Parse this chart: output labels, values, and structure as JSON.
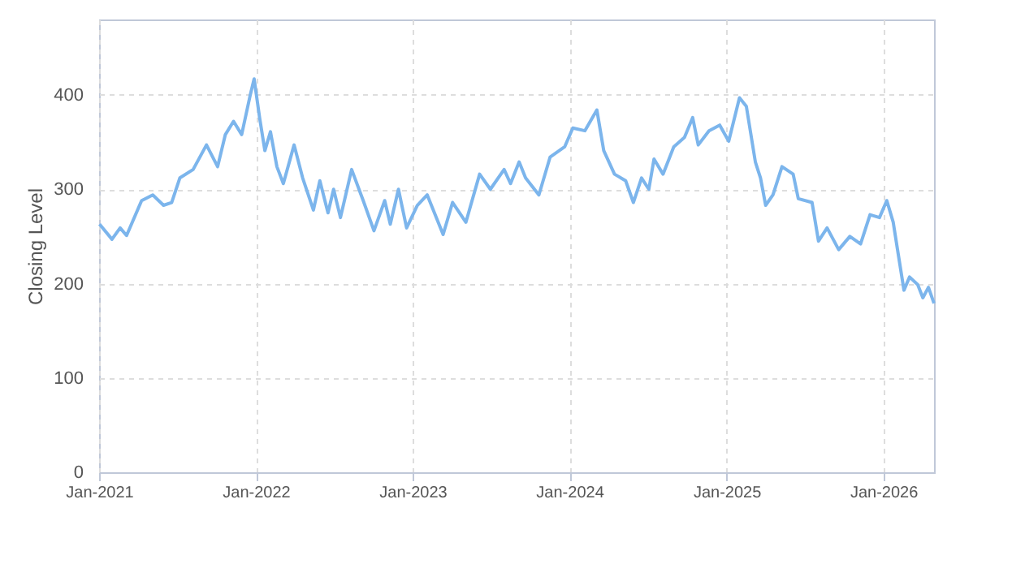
{
  "chart_data": {
    "type": "line",
    "ylabel": "Closing Level",
    "x": [
      "2021-01-02",
      "2021-01-31",
      "2021-02-19",
      "2021-03-06",
      "2021-04-10",
      "2021-05-06",
      "2021-05-31",
      "2021-06-19",
      "2021-07-08",
      "2021-08-08",
      "2021-09-08",
      "2021-10-04",
      "2021-10-22",
      "2021-11-10",
      "2021-11-29",
      "2021-12-18",
      "2021-12-28",
      "2022-01-10",
      "2022-01-22",
      "2022-02-04",
      "2022-02-19",
      "2022-03-06",
      "2022-03-31",
      "2022-04-20",
      "2022-05-15",
      "2022-05-30",
      "2022-06-18",
      "2022-07-01",
      "2022-07-17",
      "2022-08-12",
      "2022-09-08",
      "2022-10-03",
      "2022-10-28",
      "2022-11-10",
      "2022-11-29",
      "2022-12-18",
      "2023-01-12",
      "2023-02-04",
      "2023-03-13",
      "2023-04-04",
      "2023-05-05",
      "2023-06-06",
      "2023-07-01",
      "2023-08-02",
      "2023-08-17",
      "2023-09-06",
      "2023-09-21",
      "2023-10-22",
      "2023-11-17",
      "2023-12-21",
      "2024-01-09",
      "2024-02-06",
      "2024-03-05",
      "2024-03-21",
      "2024-04-15",
      "2024-05-11",
      "2024-05-29",
      "2024-06-17",
      "2024-07-04",
      "2024-07-16",
      "2024-08-06",
      "2024-08-31",
      "2024-09-25",
      "2024-10-14",
      "2024-10-27",
      "2024-11-21",
      "2024-12-16",
      "2025-01-06",
      "2025-01-31",
      "2025-02-16",
      "2025-03-09",
      "2025-03-21",
      "2025-04-02",
      "2025-04-19",
      "2025-05-10",
      "2025-06-05",
      "2025-06-17",
      "2025-07-19",
      "2025-08-03",
      "2025-08-23",
      "2025-09-19",
      "2025-10-15",
      "2025-11-09",
      "2025-12-01",
      "2025-12-23",
      "2026-01-09",
      "2026-01-24",
      "2026-02-03",
      "2026-02-18",
      "2026-03-03",
      "2026-03-22",
      "2026-04-03",
      "2026-04-16",
      "2026-04-29"
    ],
    "series": [
      {
        "color": "#7cb5ec",
        "values": [
          263,
          247,
          259,
          251,
          288,
          294,
          283,
          286,
          312,
          321,
          347,
          324,
          358,
          372,
          358,
          398,
          417,
          375,
          341,
          361,
          324,
          306,
          347,
          312,
          278,
          309,
          275,
          300,
          270,
          321,
          288,
          256,
          288,
          263,
          300,
          259,
          283,
          294,
          252,
          286,
          265,
          316,
          300,
          321,
          306,
          329,
          312,
          294,
          334,
          345,
          365,
          362,
          384,
          341,
          316,
          309,
          286,
          312,
          300,
          332,
          316,
          345,
          355,
          376,
          347,
          362,
          368,
          351,
          397,
          388,
          329,
          312,
          283,
          294,
          324,
          316,
          290,
          286,
          245,
          259,
          236,
          250,
          242,
          273,
          270,
          288,
          265,
          236,
          193,
          207,
          199,
          185,
          196,
          179
        ]
      }
    ],
    "xlim": [
      "2021-01-01",
      "2026-04-29"
    ],
    "xticks": [
      {
        "value": "2021-01-01",
        "label": "Jan-2021"
      },
      {
        "value": "2022-01-01",
        "label": "Jan-2022"
      },
      {
        "value": "2023-01-01",
        "label": "Jan-2023"
      },
      {
        "value": "2024-01-01",
        "label": "Jan-2024"
      },
      {
        "value": "2025-01-01",
        "label": "Jan-2025"
      },
      {
        "value": "2026-01-01",
        "label": "Jan-2026"
      }
    ],
    "ylim": [
      0,
      480
    ],
    "yticks": [
      0,
      100,
      200,
      300,
      400
    ],
    "grid": true,
    "line_style": "solid",
    "marker": "none"
  }
}
